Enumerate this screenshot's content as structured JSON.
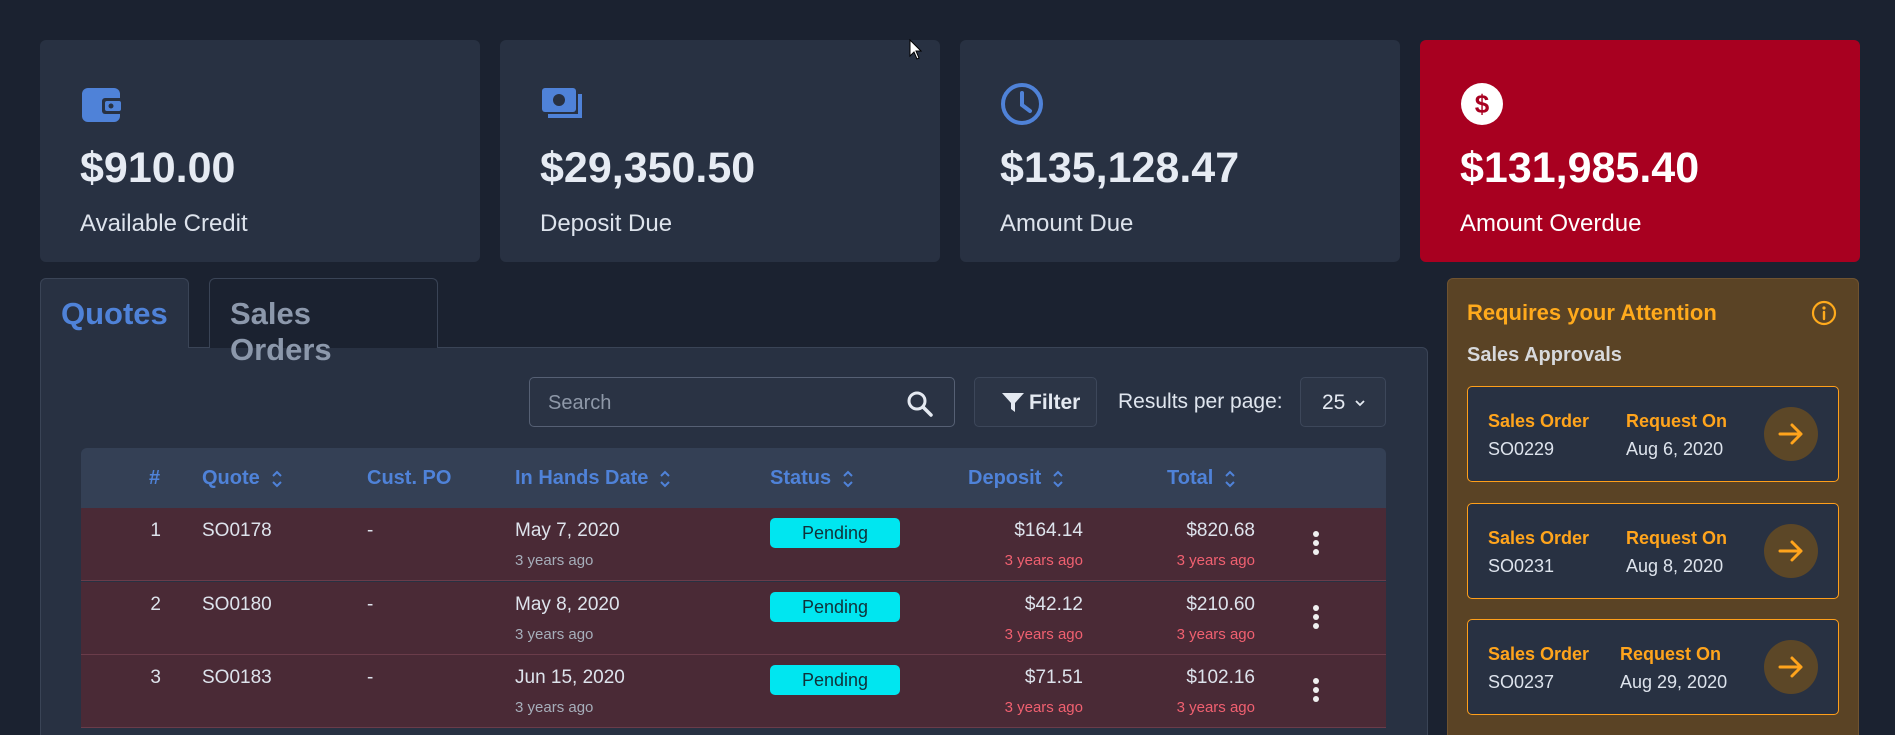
{
  "stats": [
    {
      "icon": "wallet-icon",
      "amount": "$910.00",
      "label": "Available Credit"
    },
    {
      "icon": "money-bill-icon",
      "amount": "$29,350.50",
      "label": "Deposit Due"
    },
    {
      "icon": "clock-icon",
      "amount": "$135,128.47",
      "label": "Amount Due"
    },
    {
      "icon": "dollar-circle-icon",
      "amount": "$131,985.40",
      "label": "Amount Overdue"
    }
  ],
  "tabs": [
    {
      "label": "Quotes",
      "active": true
    },
    {
      "label": "Sales Orders",
      "active": false
    }
  ],
  "toolbar": {
    "search_placeholder": "Search",
    "search_value": "",
    "filter_label": "Filter",
    "results_per_page_label": "Results per page:",
    "results_per_page_value": "25"
  },
  "table": {
    "columns": [
      "#",
      "Quote",
      "Cust. PO",
      "In Hands Date",
      "Status",
      "Deposit",
      "Total"
    ],
    "rows": [
      {
        "num": "1",
        "quote": "SO0178",
        "po": "-",
        "date": "May 7, 2020",
        "date_ago": "3 years ago",
        "status": "Pending",
        "deposit": "$164.14",
        "deposit_ago": "3 years ago",
        "total": "$820.68",
        "total_ago": "3 years ago"
      },
      {
        "num": "2",
        "quote": "SO0180",
        "po": "-",
        "date": "May 8, 2020",
        "date_ago": "3 years ago",
        "status": "Pending",
        "deposit": "$42.12",
        "deposit_ago": "3 years ago",
        "total": "$210.60",
        "total_ago": "3 years ago"
      },
      {
        "num": "3",
        "quote": "SO0183",
        "po": "-",
        "date": "Jun 15, 2020",
        "date_ago": "3 years ago",
        "status": "Pending",
        "deposit": "$71.51",
        "deposit_ago": "3 years ago",
        "total": "$102.16",
        "total_ago": "3 years ago"
      }
    ]
  },
  "attention": {
    "title": "Requires your Attention",
    "section": "Sales Approvals",
    "items": [
      {
        "h1": "Sales Order",
        "v1": "SO0229",
        "h2": "Request On",
        "v2": "Aug 6, 2020"
      },
      {
        "h1": "Sales Order",
        "v1": "SO0231",
        "h2": "Request On",
        "v2": "Aug 8, 2020"
      },
      {
        "h1": "Sales Order",
        "v1": "SO0237",
        "h2": "Request On",
        "v2": "Aug 29, 2020"
      }
    ]
  },
  "colors": {
    "background": "#1b2230",
    "card": "#283142",
    "overdue": "#a80020",
    "accent_blue": "#4f82d8",
    "row_overdue": "#4a2a36",
    "badge_pending": "#00e6f0",
    "attention_orange": "#ffaa1c"
  }
}
